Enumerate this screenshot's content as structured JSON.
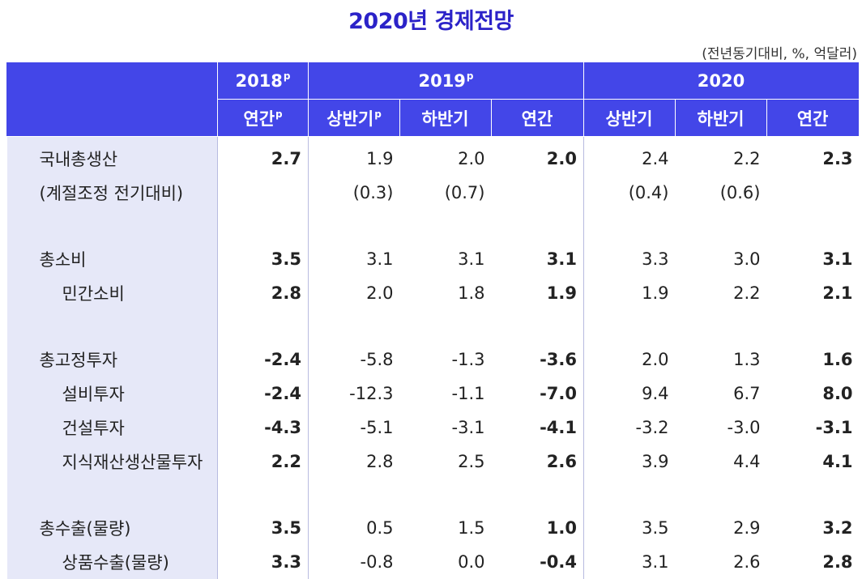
{
  "title": "2020년 경제전망",
  "unit": "(전년동기대비, %, 억달러)",
  "header": {
    "years": [
      {
        "label": "2018",
        "sup": "p"
      },
      {
        "label": "2019",
        "sup": "p"
      },
      {
        "label": "2020",
        "sup": ""
      }
    ],
    "periods": [
      {
        "label": "연간",
        "sup": "p"
      },
      {
        "label": "상반기",
        "sup": "p"
      },
      {
        "label": "하반기",
        "sup": ""
      },
      {
        "label": "연간",
        "sup": ""
      },
      {
        "label": "상반기",
        "sup": ""
      },
      {
        "label": "하반기",
        "sup": ""
      },
      {
        "label": "연간",
        "sup": ""
      }
    ]
  },
  "rows": [
    {
      "label": "국내총생산",
      "values": [
        "2.7",
        "1.9",
        "2.0",
        "2.0",
        "2.4",
        "2.2",
        "2.3"
      ]
    },
    {
      "label": "(계절조정 전기대비)",
      "values": [
        "",
        "(0.3)",
        "(0.7)",
        "",
        "(0.4)",
        "(0.6)",
        ""
      ]
    },
    {
      "label": "총소비",
      "values": [
        "3.5",
        "3.1",
        "3.1",
        "3.1",
        "3.3",
        "3.0",
        "3.1"
      ]
    },
    {
      "label": "민간소비",
      "values": [
        "2.8",
        "2.0",
        "1.8",
        "1.9",
        "1.9",
        "2.2",
        "2.1"
      ]
    },
    {
      "label": "총고정투자",
      "values": [
        "-2.4",
        "-5.8",
        "-1.3",
        "-3.6",
        "2.0",
        "1.3",
        "1.6"
      ]
    },
    {
      "label": "설비투자",
      "values": [
        "-2.4",
        "-12.3",
        "-1.1",
        "-7.0",
        "9.4",
        "6.7",
        "8.0"
      ]
    },
    {
      "label": "건설투자",
      "values": [
        "-4.3",
        "-5.1",
        "-3.1",
        "-4.1",
        "-3.2",
        "-3.0",
        "-3.1"
      ]
    },
    {
      "label": "지식재산생산물투자",
      "values": [
        "2.2",
        "2.8",
        "2.5",
        "2.6",
        "3.9",
        "4.4",
        "4.1"
      ]
    },
    {
      "label": "총수출(물량)",
      "values": [
        "3.5",
        "0.5",
        "1.5",
        "1.0",
        "3.5",
        "2.9",
        "3.2"
      ]
    },
    {
      "label": "상품수출(물량)",
      "values": [
        "3.3",
        "-0.8",
        "0.0",
        "-0.4",
        "3.1",
        "2.6",
        "2.8"
      ]
    }
  ]
}
